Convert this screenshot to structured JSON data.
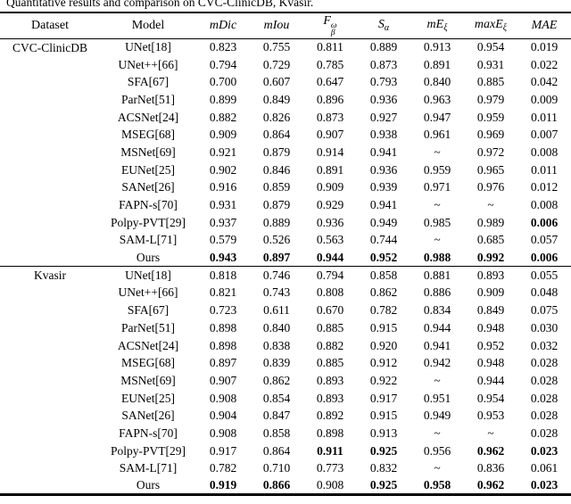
{
  "caption": "Quantitative results and comparison on CVC-ClinicDB, Kvasir.",
  "table": {
    "columns": [
      {
        "label": "Dataset"
      },
      {
        "label": "Model"
      },
      {
        "base": "mDic"
      },
      {
        "base": "mIou"
      },
      {
        "base": "F",
        "sup": "ω",
        "sub": "β"
      },
      {
        "base": "S",
        "sub": "α"
      },
      {
        "base": "mE",
        "sub": "ξ"
      },
      {
        "base": "maxE",
        "sub": "ξ"
      },
      {
        "base": "MAE"
      }
    ],
    "sections": [
      {
        "dataset": "CVC-ClinicDB",
        "rows": [
          {
            "model": "UNet[18]",
            "values": [
              "0.823",
              "0.755",
              "0.811",
              "0.889",
              "0.913",
              "0.954",
              "0.019"
            ],
            "bold": [
              false,
              false,
              false,
              false,
              false,
              false,
              false
            ]
          },
          {
            "model": "UNet++[66]",
            "values": [
              "0.794",
              "0.729",
              "0.785",
              "0.873",
              "0.891",
              "0.931",
              "0.022"
            ],
            "bold": [
              false,
              false,
              false,
              false,
              false,
              false,
              false
            ]
          },
          {
            "model": "SFA[67]",
            "values": [
              "0.700",
              "0.607",
              "0.647",
              "0.793",
              "0.840",
              "0.885",
              "0.042"
            ],
            "bold": [
              false,
              false,
              false,
              false,
              false,
              false,
              false
            ]
          },
          {
            "model": "ParNet[51]",
            "values": [
              "0.899",
              "0.849",
              "0.896",
              "0.936",
              "0.963",
              "0.979",
              "0.009"
            ],
            "bold": [
              false,
              false,
              false,
              false,
              false,
              false,
              false
            ]
          },
          {
            "model": "ACSNet[24]",
            "values": [
              "0.882",
              "0.826",
              "0.873",
              "0.927",
              "0.947",
              "0.959",
              "0.011"
            ],
            "bold": [
              false,
              false,
              false,
              false,
              false,
              false,
              false
            ]
          },
          {
            "model": "MSEG[68]",
            "values": [
              "0.909",
              "0.864",
              "0.907",
              "0.938",
              "0.961",
              "0.969",
              "0.007"
            ],
            "bold": [
              false,
              false,
              false,
              false,
              false,
              false,
              false
            ]
          },
          {
            "model": "MSNet[69]",
            "values": [
              "0.921",
              "0.879",
              "0.914",
              "0.941",
              "~",
              "0.972",
              "0.008"
            ],
            "bold": [
              false,
              false,
              false,
              false,
              false,
              false,
              false
            ]
          },
          {
            "model": "EUNet[25]",
            "values": [
              "0.902",
              "0.846",
              "0.891",
              "0.936",
              "0.959",
              "0.965",
              "0.011"
            ],
            "bold": [
              false,
              false,
              false,
              false,
              false,
              false,
              false
            ]
          },
          {
            "model": "SANet[26]",
            "values": [
              "0.916",
              "0.859",
              "0.909",
              "0.939",
              "0.971",
              "0.976",
              "0.012"
            ],
            "bold": [
              false,
              false,
              false,
              false,
              false,
              false,
              false
            ]
          },
          {
            "model": "FAPN-s[70]",
            "values": [
              "0.931",
              "0.879",
              "0.929",
              "0.941",
              "~",
              "~",
              "0.008"
            ],
            "bold": [
              false,
              false,
              false,
              false,
              false,
              false,
              false
            ]
          },
          {
            "model": "Polpy-PVT[29]",
            "values": [
              "0.937",
              "0.889",
              "0.936",
              "0.949",
              "0.985",
              "0.989",
              "0.006"
            ],
            "bold": [
              false,
              false,
              false,
              false,
              false,
              false,
              true
            ]
          },
          {
            "model": "SAM-L[71]",
            "values": [
              "0.579",
              "0.526",
              "0.563",
              "0.744",
              "~",
              "0.685",
              "0.057"
            ],
            "bold": [
              false,
              false,
              false,
              false,
              false,
              false,
              false
            ]
          },
          {
            "model": "Ours",
            "values": [
              "0.943",
              "0.897",
              "0.944",
              "0.952",
              "0.988",
              "0.992",
              "0.006"
            ],
            "bold": [
              true,
              true,
              true,
              true,
              true,
              true,
              true
            ]
          }
        ]
      },
      {
        "dataset": "Kvasir",
        "rows": [
          {
            "model": "UNet[18]",
            "values": [
              "0.818",
              "0.746",
              "0.794",
              "0.858",
              "0.881",
              "0.893",
              "0.055"
            ],
            "bold": [
              false,
              false,
              false,
              false,
              false,
              false,
              false
            ]
          },
          {
            "model": "UNet++[66]",
            "values": [
              "0.821",
              "0.743",
              "0.808",
              "0.862",
              "0.886",
              "0.909",
              "0.048"
            ],
            "bold": [
              false,
              false,
              false,
              false,
              false,
              false,
              false
            ]
          },
          {
            "model": "SFA[67]",
            "values": [
              "0.723",
              "0.611",
              "0.670",
              "0.782",
              "0.834",
              "0.849",
              "0.075"
            ],
            "bold": [
              false,
              false,
              false,
              false,
              false,
              false,
              false
            ]
          },
          {
            "model": "ParNet[51]",
            "values": [
              "0.898",
              "0.840",
              "0.885",
              "0.915",
              "0.944",
              "0.948",
              "0.030"
            ],
            "bold": [
              false,
              false,
              false,
              false,
              false,
              false,
              false
            ]
          },
          {
            "model": "ACSNet[24]",
            "values": [
              "0.898",
              "0.838",
              "0.882",
              "0.920",
              "0.941",
              "0.952",
              "0.032"
            ],
            "bold": [
              false,
              false,
              false,
              false,
              false,
              false,
              false
            ]
          },
          {
            "model": "MSEG[68]",
            "values": [
              "0.897",
              "0.839",
              "0.885",
              "0.912",
              "0.942",
              "0.948",
              "0.028"
            ],
            "bold": [
              false,
              false,
              false,
              false,
              false,
              false,
              false
            ]
          },
          {
            "model": "MSNet[69]",
            "values": [
              "0.907",
              "0.862",
              "0.893",
              "0.922",
              "~",
              "0.944",
              "0.028"
            ],
            "bold": [
              false,
              false,
              false,
              false,
              false,
              false,
              false
            ]
          },
          {
            "model": "EUNet[25]",
            "values": [
              "0.908",
              "0.854",
              "0.893",
              "0.917",
              "0.951",
              "0.954",
              "0.028"
            ],
            "bold": [
              false,
              false,
              false,
              false,
              false,
              false,
              false
            ]
          },
          {
            "model": "SANet[26]",
            "values": [
              "0.904",
              "0.847",
              "0.892",
              "0.915",
              "0.949",
              "0.953",
              "0.028"
            ],
            "bold": [
              false,
              false,
              false,
              false,
              false,
              false,
              false
            ]
          },
          {
            "model": "FAPN-s[70]",
            "values": [
              "0.908",
              "0.858",
              "0.898",
              "0.913",
              "~",
              "~",
              "0.028"
            ],
            "bold": [
              false,
              false,
              false,
              false,
              false,
              false,
              false
            ]
          },
          {
            "model": "Polpy-PVT[29]",
            "values": [
              "0.917",
              "0.864",
              "0.911",
              "0.925",
              "0.956",
              "0.962",
              "0.023"
            ],
            "bold": [
              false,
              false,
              true,
              true,
              false,
              true,
              true
            ]
          },
          {
            "model": "SAM-L[71]",
            "values": [
              "0.782",
              "0.710",
              "0.773",
              "0.832",
              "~",
              "0.836",
              "0.061"
            ],
            "bold": [
              false,
              false,
              false,
              false,
              false,
              false,
              false
            ]
          },
          {
            "model": "Ours",
            "values": [
              "0.919",
              "0.866",
              "0.908",
              "0.925",
              "0.958",
              "0.962",
              "0.023"
            ],
            "bold": [
              true,
              true,
              false,
              true,
              true,
              true,
              true
            ]
          }
        ]
      }
    ]
  }
}
